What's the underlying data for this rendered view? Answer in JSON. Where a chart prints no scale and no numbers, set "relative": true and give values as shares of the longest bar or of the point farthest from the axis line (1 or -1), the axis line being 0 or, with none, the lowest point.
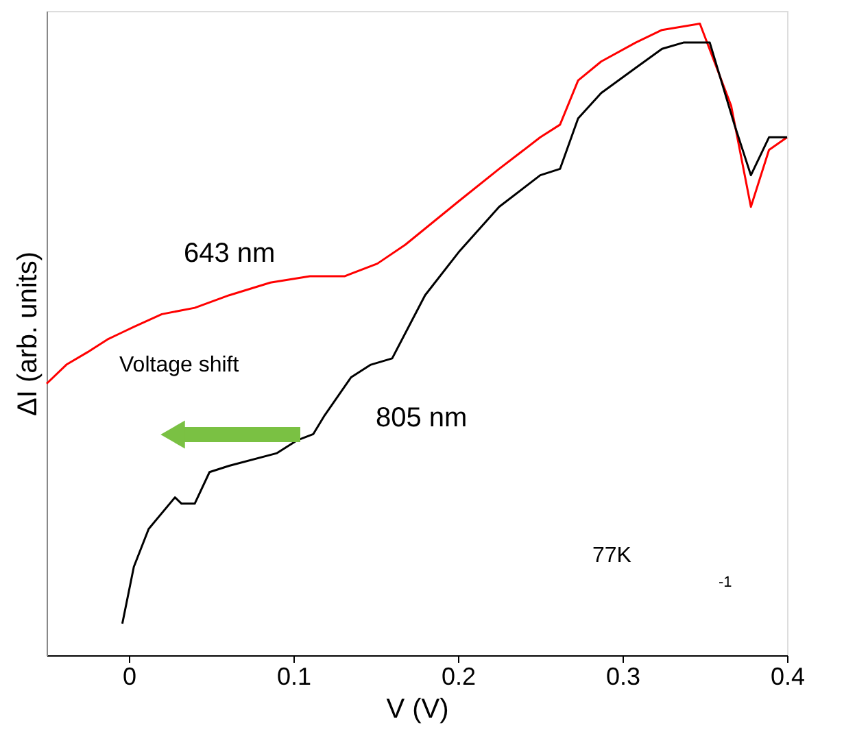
{
  "chart_data": {
    "type": "line",
    "relative": true,
    "xlabel": "V (V)",
    "ylabel": "ΔI (arb. units)",
    "xlim": [
      -0.05,
      0.4
    ],
    "xticks": [
      0,
      0.1,
      0.2,
      0.3,
      0.4
    ],
    "grid": false,
    "marker": "none",
    "line_style": "solid",
    "series": [
      {
        "name": "643 nm",
        "color": "#ff0000",
        "x": [
          -0.05,
          -0.038,
          -0.025,
          -0.013,
          -0.005,
          0.003,
          0.02,
          0.04,
          0.061,
          0.086,
          0.11,
          0.131,
          0.151,
          0.168,
          0.201,
          0.225,
          0.25,
          0.262,
          0.273,
          0.287,
          0.308,
          0.324,
          0.347,
          0.366,
          0.378,
          0.389,
          0.4
        ],
        "values": [
          0.43,
          0.46,
          0.48,
          0.5,
          0.51,
          0.52,
          0.54,
          0.55,
          0.57,
          0.59,
          0.6,
          0.6,
          0.62,
          0.65,
          0.72,
          0.77,
          0.82,
          0.84,
          0.91,
          0.94,
          0.97,
          0.99,
          1.0,
          0.87,
          0.71,
          0.8,
          0.82
        ]
      },
      {
        "name": "805 nm",
        "color": "#000000",
        "x": [
          -0.004,
          0.003,
          0.012,
          0.028,
          0.032,
          0.04,
          0.049,
          0.061,
          0.09,
          0.102,
          0.112,
          0.119,
          0.135,
          0.147,
          0.16,
          0.18,
          0.201,
          0.225,
          0.25,
          0.262,
          0.273,
          0.287,
          0.308,
          0.324,
          0.337,
          0.353,
          0.368,
          0.378,
          0.389,
          0.4
        ],
        "values": [
          0.05,
          0.14,
          0.2,
          0.25,
          0.24,
          0.24,
          0.29,
          0.3,
          0.32,
          0.34,
          0.35,
          0.38,
          0.44,
          0.46,
          0.47,
          0.57,
          0.64,
          0.71,
          0.76,
          0.77,
          0.85,
          0.89,
          0.93,
          0.96,
          0.97,
          0.97,
          0.84,
          0.76,
          0.82,
          0.82
        ]
      }
    ],
    "annotations": [
      "Voltage shift",
      "77K",
      "-1"
    ]
  }
}
